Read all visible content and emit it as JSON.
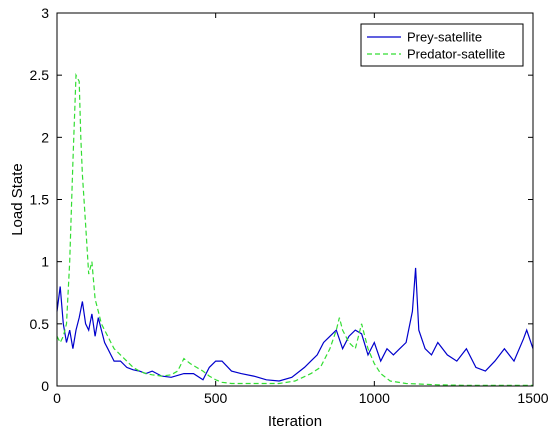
{
  "chart_data": {
    "type": "line",
    "title": "",
    "xlabel": "Iteration",
    "ylabel": "Load State",
    "xlim": [
      0,
      1500
    ],
    "ylim": [
      0,
      3
    ],
    "x_ticks": [
      0,
      500,
      1000,
      1500
    ],
    "y_ticks": [
      0,
      0.5,
      1,
      1.5,
      2,
      2.5,
      3
    ],
    "x_tick_labels": [
      "0",
      "500",
      "1000",
      "1500"
    ],
    "y_tick_labels": [
      "0",
      "0.5",
      "1",
      "1.5",
      "2",
      "2.5",
      "3"
    ],
    "grid": false,
    "legend_position": "top-right",
    "series": [
      {
        "name": "Prey-satellite",
        "color": "#0000cc",
        "style": "solid",
        "x": [
          0,
          10,
          20,
          30,
          40,
          50,
          60,
          70,
          80,
          90,
          100,
          110,
          120,
          130,
          140,
          150,
          160,
          170,
          180,
          200,
          220,
          240,
          260,
          280,
          300,
          330,
          360,
          400,
          430,
          460,
          480,
          500,
          520,
          550,
          580,
          620,
          660,
          700,
          740,
          780,
          800,
          820,
          840,
          860,
          880,
          900,
          920,
          940,
          960,
          980,
          1000,
          1020,
          1040,
          1060,
          1080,
          1100,
          1120,
          1130,
          1140,
          1160,
          1180,
          1200,
          1230,
          1260,
          1290,
          1320,
          1350,
          1380,
          1410,
          1440,
          1470,
          1480,
          1500
        ],
        "y": [
          0.6,
          0.8,
          0.5,
          0.35,
          0.45,
          0.3,
          0.45,
          0.55,
          0.68,
          0.5,
          0.45,
          0.58,
          0.4,
          0.55,
          0.45,
          0.35,
          0.3,
          0.25,
          0.2,
          0.2,
          0.15,
          0.13,
          0.12,
          0.1,
          0.12,
          0.08,
          0.07,
          0.1,
          0.1,
          0.05,
          0.15,
          0.2,
          0.2,
          0.12,
          0.1,
          0.08,
          0.05,
          0.04,
          0.07,
          0.15,
          0.2,
          0.25,
          0.35,
          0.4,
          0.45,
          0.3,
          0.4,
          0.45,
          0.42,
          0.25,
          0.35,
          0.2,
          0.3,
          0.25,
          0.3,
          0.35,
          0.6,
          0.95,
          0.45,
          0.3,
          0.25,
          0.35,
          0.25,
          0.2,
          0.3,
          0.15,
          0.12,
          0.2,
          0.3,
          0.2,
          0.38,
          0.45,
          0.3
        ]
      },
      {
        "name": "Predator-satellite",
        "color": "#33dd33",
        "style": "dashed",
        "x": [
          0,
          10,
          20,
          30,
          40,
          50,
          60,
          70,
          75,
          80,
          90,
          100,
          110,
          120,
          130,
          140,
          150,
          160,
          170,
          180,
          200,
          220,
          240,
          260,
          280,
          300,
          330,
          360,
          380,
          400,
          420,
          440,
          460,
          480,
          500,
          520,
          550,
          600,
          650,
          700,
          750,
          800,
          830,
          860,
          880,
          890,
          900,
          920,
          940,
          960,
          980,
          1000,
          1020,
          1050,
          1100,
          1200,
          1300,
          1400,
          1500
        ],
        "y": [
          0.4,
          0.35,
          0.4,
          0.5,
          1.0,
          1.8,
          2.5,
          2.45,
          2.0,
          1.7,
          1.3,
          0.9,
          1.0,
          0.7,
          0.6,
          0.5,
          0.45,
          0.4,
          0.35,
          0.3,
          0.25,
          0.2,
          0.15,
          0.12,
          0.1,
          0.09,
          0.08,
          0.09,
          0.12,
          0.22,
          0.18,
          0.15,
          0.12,
          0.08,
          0.05,
          0.03,
          0.02,
          0.02,
          0.02,
          0.02,
          0.04,
          0.1,
          0.15,
          0.3,
          0.45,
          0.55,
          0.45,
          0.35,
          0.3,
          0.5,
          0.3,
          0.18,
          0.1,
          0.04,
          0.02,
          0.01,
          0.005,
          0.005,
          0.005
        ]
      }
    ]
  }
}
